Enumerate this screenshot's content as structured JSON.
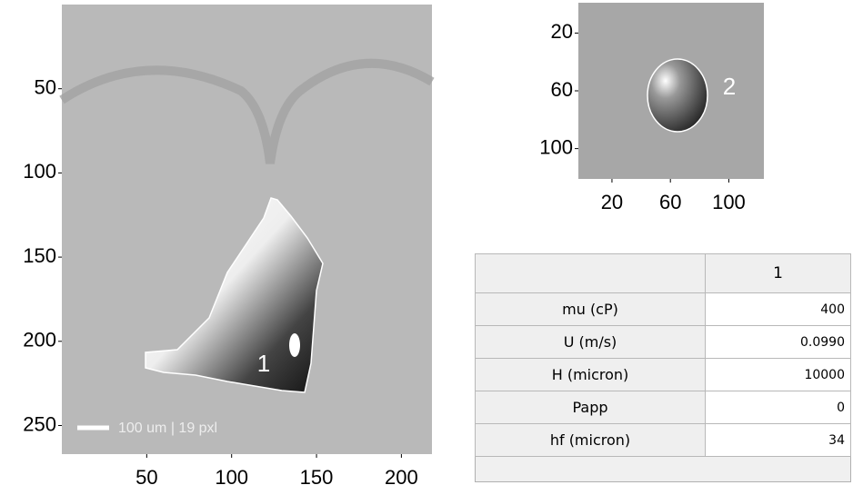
{
  "images": [
    {
      "label": "1",
      "scale_bar": "100 um | 19 pxl",
      "xlim": [
        0,
        218
      ],
      "ylim": [
        0,
        267
      ],
      "xticks": [
        50,
        100,
        150,
        200
      ],
      "yticks": [
        50,
        100,
        150,
        200,
        250
      ]
    },
    {
      "label": "2",
      "xlim": [
        -3,
        124
      ],
      "ylim": [
        -1,
        121
      ],
      "xticks": [
        20,
        60,
        100
      ],
      "yticks": [
        20,
        60,
        100
      ]
    }
  ],
  "table": {
    "header": "1",
    "rows": [
      [
        "mu (cP)",
        "400"
      ],
      [
        "U (m/s)",
        "0.0990"
      ],
      [
        "H (micron)",
        "10000"
      ],
      [
        "Papp",
        "0"
      ],
      [
        "hf (micron)",
        "34"
      ]
    ]
  }
}
